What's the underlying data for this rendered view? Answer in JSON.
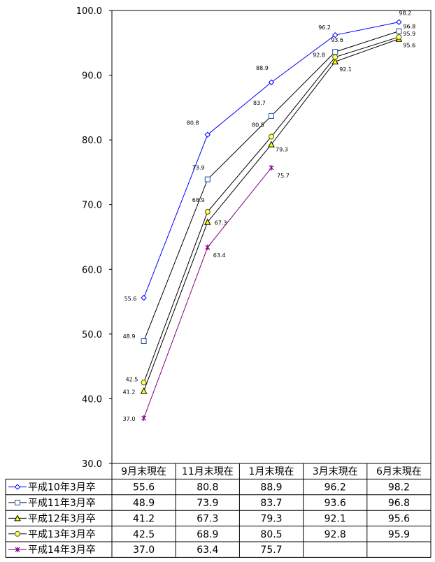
{
  "chart_data": {
    "type": "line",
    "categories": [
      "9月末現在",
      "11月末現在",
      "1月末現在",
      "3月末現在",
      "6月末現在"
    ],
    "ylim": [
      30.0,
      100.0
    ],
    "yticks": [
      "30.0",
      "40.0",
      "50.0",
      "60.0",
      "70.0",
      "80.0",
      "90.0",
      "100.0"
    ],
    "grid": false,
    "legend": "data-table-below",
    "series": [
      {
        "name": "平成10年3月卒",
        "values": [
          55.6,
          80.8,
          88.9,
          96.2,
          98.2
        ],
        "labels": [
          "55.6",
          "80.8",
          "88.9",
          "96.2",
          "98.2"
        ],
        "color": "#0000ff",
        "marker": "diamond"
      },
      {
        "name": "平成11年3月卒",
        "values": [
          48.9,
          73.9,
          83.7,
          93.6,
          96.8
        ],
        "labels": [
          "48.9",
          "73.9",
          "83.7",
          "93.6",
          "96.8"
        ],
        "color": "#000000",
        "marker": "square",
        "markerStroke": "#1f4e9a"
      },
      {
        "name": "平成12年3月卒",
        "values": [
          41.2,
          67.3,
          79.3,
          92.1,
          95.6
        ],
        "labels": [
          "41.2",
          "67.3",
          "79.3",
          "92.1",
          "95.6"
        ],
        "color": "#000000",
        "marker": "triangle",
        "markerFill": "#ffff00"
      },
      {
        "name": "平成13年3月卒",
        "values": [
          42.5,
          68.9,
          80.5,
          92.8,
          95.9
        ],
        "labels": [
          "42.5",
          "68.9",
          "80.5",
          "92.8",
          "95.9"
        ],
        "color": "#000000",
        "marker": "circle",
        "markerFill": "#ffff66",
        "markerStroke": "#555500"
      },
      {
        "name": "平成14年3月卒",
        "values": [
          37.0,
          63.4,
          75.7,
          null,
          null
        ],
        "labels": [
          "37.0",
          "63.4",
          "75.7",
          "",
          ""
        ],
        "color": "#800080",
        "marker": "star"
      }
    ]
  }
}
